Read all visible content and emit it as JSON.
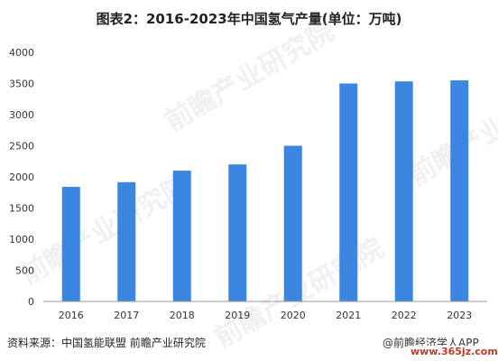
{
  "title": "图表2：2016-2023年中国氢气产量(单位：万吨)",
  "source": "资料来源：中国氢能联盟 前瞻产业研究院",
  "brand": "@前瞻经济学人APP",
  "site_watermark": "www.365jz.com",
  "watermark_text": "前瞻产业研究院",
  "colors": {
    "bar": "#3a86e0",
    "axis": "#999999",
    "text": "#333333"
  },
  "chart_data": {
    "type": "bar",
    "title": "图表2：2016-2023年中国氢气产量(单位：万吨)",
    "categories": [
      "2016",
      "2017",
      "2018",
      "2019",
      "2020",
      "2021",
      "2022",
      "2023"
    ],
    "values": [
      1840,
      1915,
      2100,
      2200,
      2500,
      3500,
      3533,
      3550
    ],
    "ylim": [
      0,
      4000
    ],
    "yticks": [
      0,
      500,
      1000,
      1500,
      2000,
      2500,
      3000,
      3500,
      4000
    ],
    "xlabel": "",
    "ylabel": "",
    "grid": false
  }
}
